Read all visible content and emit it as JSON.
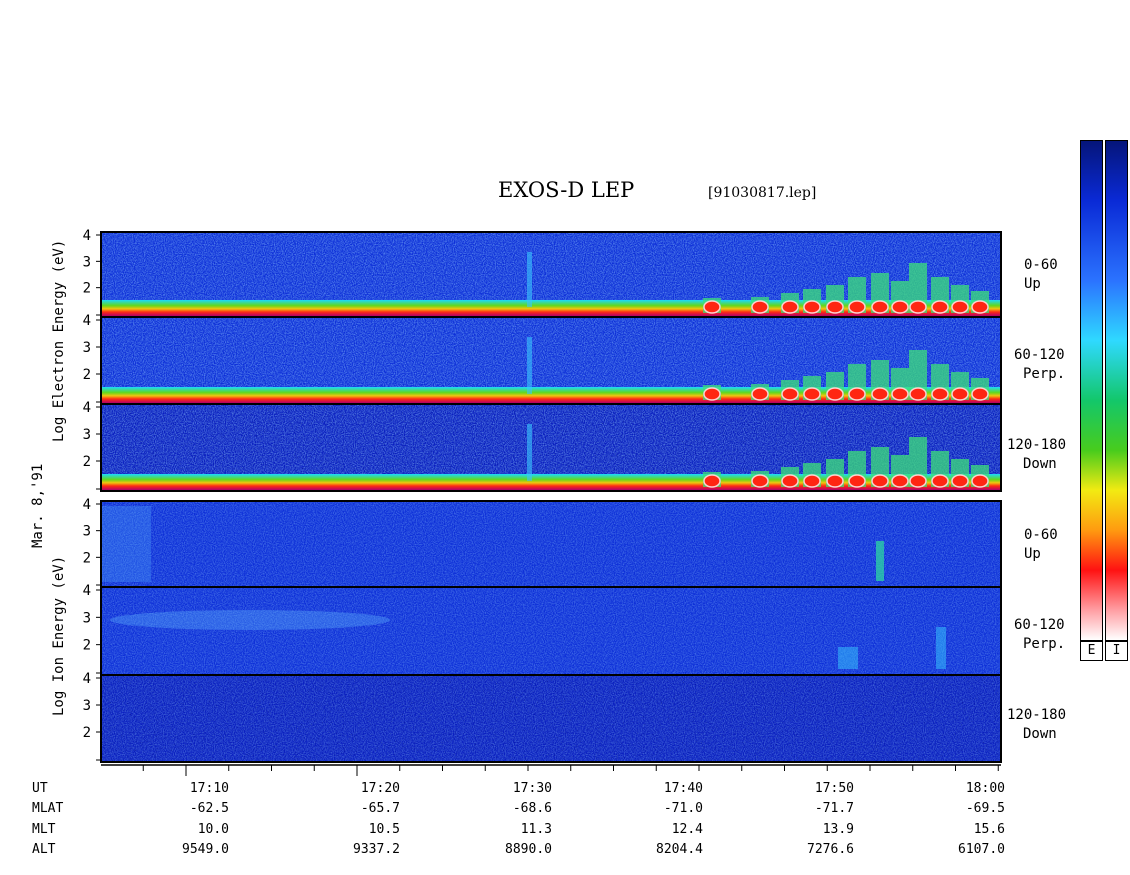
{
  "header": {
    "title": "EXOS-D LEP",
    "filename": "[91030817.lep]"
  },
  "date_label": "Mar. 8,'91",
  "panels": {
    "electron": {
      "ylabel": "Log  Electron  Energy (eV)",
      "channels": [
        {
          "pitch": "0-60",
          "dir": "Up"
        },
        {
          "pitch": "60-120",
          "dir": "Perp."
        },
        {
          "pitch": "120-180",
          "dir": "Down"
        }
      ]
    },
    "ion": {
      "ylabel": "Log  Ion  Energy (eV)",
      "channels": [
        {
          "pitch": "0-60",
          "dir": "Up"
        },
        {
          "pitch": "60-120",
          "dir": "Perp."
        },
        {
          "pitch": "120-180",
          "dir": "Down"
        }
      ]
    }
  },
  "colorbar": {
    "labels": [
      "E",
      "I"
    ]
  },
  "chart_data": {
    "type": "heatmap",
    "xlabel": "UT",
    "x_ticks": [
      "17:10",
      "17:20",
      "17:30",
      "17:40",
      "17:50",
      "18:00"
    ],
    "y_ticks": [
      "4",
      "3",
      "2"
    ],
    "ylim": [
      1,
      4
    ],
    "rows": [
      {
        "label": "UT",
        "values": [
          "17:10",
          "17:20",
          "17:30",
          "17:40",
          "17:50",
          "18:00"
        ]
      },
      {
        "label": "MLAT",
        "values": [
          "-62.5",
          "-65.7",
          "-68.6",
          "-71.0",
          "-71.7",
          "-69.5"
        ]
      },
      {
        "label": "MLT",
        "values": [
          "10.0",
          "10.5",
          "11.3",
          "12.4",
          "13.9",
          "15.6"
        ]
      },
      {
        "label": "ALT",
        "values": [
          "9549.0",
          "9337.2",
          "8890.0",
          "8204.4",
          "7276.6",
          "6107.0"
        ]
      }
    ]
  }
}
